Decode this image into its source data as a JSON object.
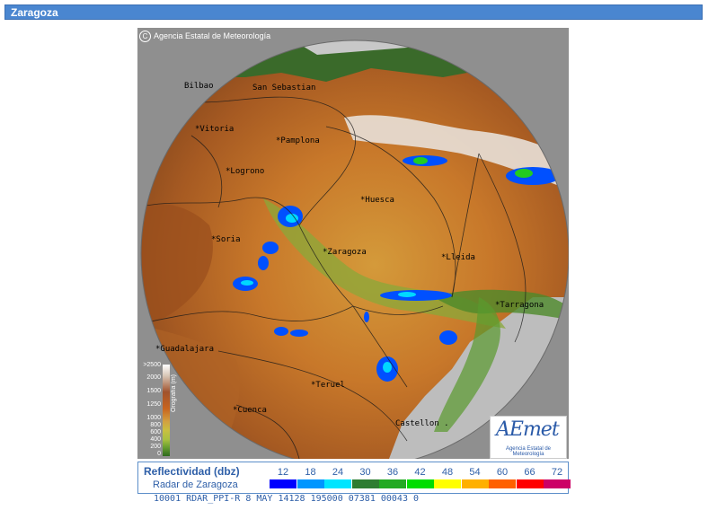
{
  "titlebar": {
    "title": "Zaragoza"
  },
  "map": {
    "copyright": "Agencia Estatal de Meteorología",
    "copyright_symbol": "C",
    "cities": [
      {
        "label": "Bilbao"
      },
      {
        "label": "San Sebastian"
      },
      {
        "label": "*Vitoria"
      },
      {
        "label": "*Pamplona"
      },
      {
        "label": "*Logrono"
      },
      {
        "label": "*Huesca"
      },
      {
        "label": "*Soria"
      },
      {
        "label": "*Zaragoza"
      },
      {
        "label": "*Lleida"
      },
      {
        "label": "*Tarragona"
      },
      {
        "label": "*Guadalajara"
      },
      {
        "label": "*Teruel"
      },
      {
        "label": "*Cuenca"
      },
      {
        "label": "Castellon ."
      }
    ]
  },
  "orography": {
    "label": "Orografía (m)",
    "ticks": [
      ">2500",
      "2000",
      "1500",
      "1250",
      "1000",
      "800",
      "600",
      "400",
      "200",
      "0"
    ]
  },
  "logo": {
    "main": "AEmet",
    "sub": "Agencia Estatal de Meteorología"
  },
  "legend": {
    "title": "Reflectividad (dbz)",
    "subtitle": "Radar de Zaragoza",
    "levels": [
      {
        "value": "12",
        "color": "#0000ff"
      },
      {
        "value": "18",
        "color": "#0096ff"
      },
      {
        "value": "24",
        "color": "#00e5ff"
      },
      {
        "value": "30",
        "color": "#2e7d32"
      },
      {
        "value": "36",
        "color": "#22aa22"
      },
      {
        "value": "42",
        "color": "#00dd00"
      },
      {
        "value": "48",
        "color": "#ffff00"
      },
      {
        "value": "54",
        "color": "#ffb000"
      },
      {
        "value": "60",
        "color": "#ff6000"
      },
      {
        "value": "66",
        "color": "#ff0000"
      },
      {
        "value": "72",
        "color": "#cc0066"
      }
    ]
  },
  "status": {
    "text": "10001 RDAR_PPI-R   8 MAY 14128 195000 07381 00043 0"
  }
}
